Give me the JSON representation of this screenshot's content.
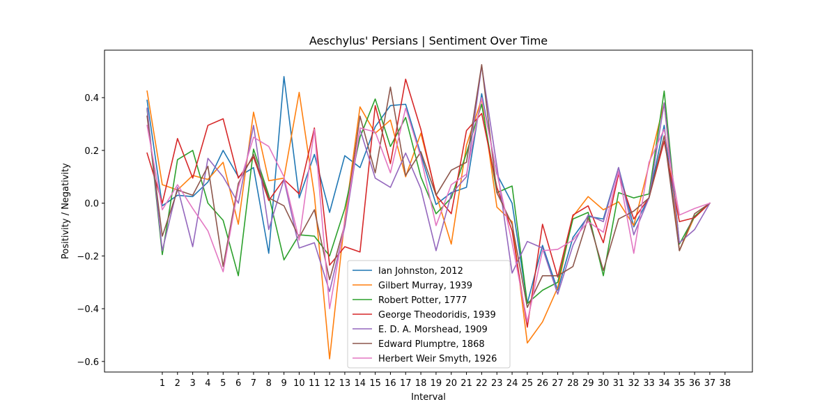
{
  "chart_data": {
    "type": "line",
    "title": "Aeschylus' Persians | Sentiment Over Time",
    "xlabel": "Interval",
    "ylabel": "Positivity / Negativity",
    "xlim": [
      -2.8,
      39.8
    ],
    "ylim": [
      -0.64,
      0.58
    ],
    "x_ticks": [
      1,
      2,
      3,
      4,
      5,
      6,
      7,
      8,
      9,
      10,
      11,
      12,
      13,
      14,
      15,
      16,
      17,
      18,
      19,
      20,
      21,
      22,
      23,
      24,
      25,
      26,
      27,
      28,
      29,
      30,
      31,
      32,
      33,
      34,
      35,
      36,
      37,
      38
    ],
    "y_ticks": [
      -0.6,
      -0.4,
      -0.2,
      0.0,
      0.2,
      0.4
    ],
    "y_tick_labels": [
      "−0.6",
      "−0.4",
      "−0.2",
      "0.0",
      "0.2",
      "0.4"
    ],
    "grid": false,
    "legend_position": "lower-center",
    "x": [
      0,
      1,
      2,
      3,
      4,
      5,
      6,
      7,
      8,
      9,
      10,
      11,
      12,
      13,
      14,
      15,
      16,
      17,
      18,
      19,
      20,
      21,
      22,
      23,
      24,
      25,
      26,
      27,
      28,
      29,
      30,
      31,
      32,
      33,
      34,
      35,
      36,
      37
    ],
    "series": [
      {
        "name": "Ian Johnston, 2012",
        "color": "#1f77b4",
        "values": [
          0.39,
          -0.01,
          0.03,
          0.025,
          0.08,
          0.2,
          0.1,
          0.135,
          -0.19,
          0.48,
          0.02,
          0.185,
          -0.035,
          0.18,
          0.135,
          0.29,
          0.37,
          0.375,
          0.185,
          -0.005,
          0.04,
          0.06,
          0.415,
          0.11,
          0.0,
          -0.38,
          -0.16,
          -0.33,
          -0.13,
          -0.05,
          -0.06,
          0.135,
          -0.09,
          0.02,
          0.295,
          -0.18,
          -0.05,
          0.0
        ]
      },
      {
        "name": "Gilbert Murray, 1939",
        "color": "#ff7f0e",
        "values": [
          0.425,
          0.07,
          0.05,
          0.105,
          0.09,
          0.155,
          -0.08,
          0.345,
          0.085,
          0.095,
          0.42,
          0.03,
          -0.59,
          -0.06,
          0.365,
          0.265,
          0.315,
          0.1,
          0.265,
          0.035,
          -0.155,
          0.22,
          0.395,
          -0.015,
          -0.07,
          -0.53,
          -0.45,
          -0.32,
          -0.05,
          0.025,
          -0.025,
          0.005,
          -0.085,
          0.145,
          0.38,
          -0.18,
          -0.05,
          0.0
        ]
      },
      {
        "name": "Robert Potter, 1777",
        "color": "#2ca02c",
        "values": [
          0.355,
          -0.195,
          0.165,
          0.2,
          0.0,
          -0.065,
          -0.275,
          0.205,
          0.03,
          -0.215,
          -0.12,
          -0.125,
          -0.2,
          -0.02,
          0.25,
          0.395,
          0.215,
          0.325,
          0.1,
          -0.04,
          0.02,
          0.19,
          0.375,
          0.04,
          0.065,
          -0.38,
          -0.33,
          -0.3,
          -0.06,
          -0.035,
          -0.275,
          0.04,
          0.02,
          0.035,
          0.425,
          -0.155,
          -0.05,
          0.0
        ]
      },
      {
        "name": "George Theodoridis, 1939",
        "color": "#d62728",
        "values": [
          0.19,
          0.0,
          0.245,
          0.095,
          0.295,
          0.32,
          0.095,
          0.175,
          0.01,
          0.09,
          0.035,
          0.285,
          -0.235,
          -0.165,
          -0.185,
          0.37,
          0.15,
          0.47,
          0.28,
          0.03,
          -0.04,
          0.275,
          0.34,
          0.06,
          -0.105,
          -0.47,
          -0.08,
          -0.28,
          -0.045,
          -0.01,
          -0.15,
          0.11,
          -0.06,
          0.02,
          0.235,
          -0.07,
          -0.055,
          0.0
        ]
      },
      {
        "name": "E. D. A. Morshead, 1909",
        "color": "#9467bd",
        "values": [
          0.36,
          -0.18,
          0.06,
          -0.165,
          0.17,
          0.1,
          0.0,
          0.295,
          -0.1,
          0.09,
          -0.17,
          -0.15,
          -0.335,
          -0.09,
          0.28,
          0.095,
          0.06,
          0.19,
          0.055,
          -0.18,
          0.035,
          0.1,
          0.52,
          0.14,
          -0.265,
          -0.145,
          -0.17,
          -0.345,
          -0.16,
          -0.045,
          -0.07,
          0.135,
          -0.12,
          0.02,
          0.38,
          -0.15,
          -0.1,
          0.0
        ]
      },
      {
        "name": "Edward Plumptre, 1868",
        "color": "#8c564b",
        "values": [
          0.33,
          -0.125,
          0.05,
          0.03,
          0.14,
          -0.24,
          0.075,
          0.185,
          0.02,
          -0.01,
          -0.13,
          -0.025,
          -0.29,
          -0.08,
          0.33,
          0.115,
          0.44,
          0.105,
          0.195,
          0.03,
          0.125,
          0.155,
          0.525,
          0.04,
          -0.08,
          -0.395,
          -0.275,
          -0.275,
          -0.24,
          -0.055,
          -0.255,
          -0.06,
          -0.03,
          0.02,
          0.255,
          -0.18,
          -0.04,
          0.0
        ]
      },
      {
        "name": "Herbert Weir Smyth, 1926",
        "color": "#e377c2",
        "values": [
          0.295,
          -0.025,
          0.07,
          -0.02,
          -0.105,
          -0.26,
          0.06,
          0.25,
          0.215,
          0.1,
          -0.14,
          0.28,
          -0.4,
          -0.07,
          0.285,
          0.27,
          0.115,
          0.36,
          0.175,
          -0.085,
          0.07,
          0.11,
          0.4,
          0.115,
          -0.15,
          -0.45,
          -0.18,
          -0.175,
          -0.14,
          -0.07,
          -0.11,
          0.12,
          -0.19,
          0.155,
          0.28,
          -0.045,
          -0.02,
          0.0
        ]
      }
    ]
  }
}
